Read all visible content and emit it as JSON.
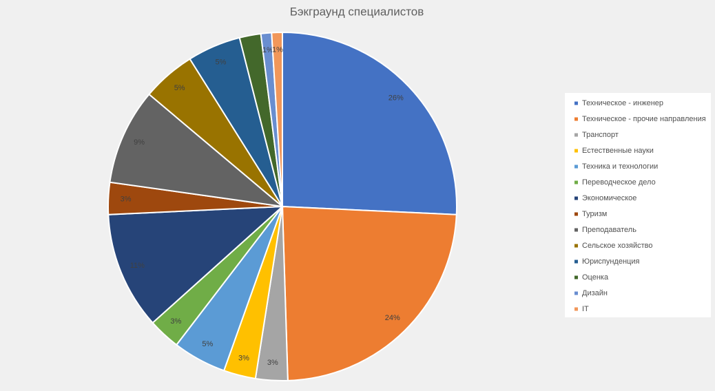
{
  "chart_data": {
    "type": "pie",
    "title": "Бэкграунд специалистов",
    "categories": [
      "Техническое - инженер",
      "Техническое - прочие направления",
      "Транспорт",
      "Естественные науки",
      "Техника и технологии",
      "Переводческое дело",
      "Экономическое",
      "Туризм",
      "Преподаватель",
      "Сельское хозяйство",
      "Юриспунденция",
      "Оценка",
      "Дизайн",
      "IT"
    ],
    "values": [
      26,
      24,
      3,
      3,
      5,
      3,
      11,
      3,
      9,
      5,
      5,
      2,
      1,
      1
    ],
    "value_labels": [
      "26%",
      "24%",
      "3%",
      "3%",
      "5%",
      "3%",
      "11%",
      "3%",
      "9%",
      "5%",
      "5%",
      null,
      "1%",
      "1%"
    ],
    "colors": [
      "#4472c4",
      "#ed7d31",
      "#a5a5a5",
      "#ffc000",
      "#5b9bd5",
      "#70ad47",
      "#264478",
      "#9e480e",
      "#636363",
      "#997300",
      "#255e91",
      "#43682b",
      "#698ed0",
      "#f1975a"
    ],
    "legend": "right"
  }
}
